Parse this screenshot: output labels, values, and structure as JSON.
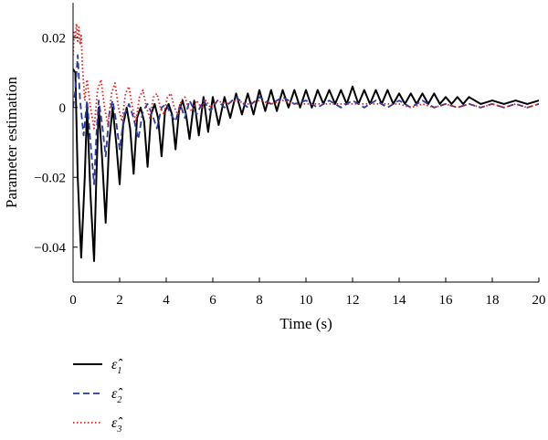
{
  "chart_data": {
    "type": "line",
    "title": "",
    "xlabel": "Time (s)",
    "ylabel": "Parameter estimation",
    "xlim": [
      0,
      20
    ],
    "ylim": [
      -0.05,
      0.03
    ],
    "xticks": [
      0,
      2,
      4,
      6,
      8,
      10,
      12,
      14,
      16,
      18,
      20
    ],
    "xtick_labels": [
      "0",
      "2",
      "4",
      "6",
      "8",
      "10",
      "12",
      "14",
      "16",
      "18",
      "20"
    ],
    "yticks": [
      -0.04,
      -0.02,
      0,
      0.02
    ],
    "ytick_labels": [
      "−0.04",
      "−0.02",
      "0",
      "0.02"
    ],
    "grid": false,
    "legend_position": "below-left",
    "series": [
      {
        "name": "ε̂",
        "subscript": "1",
        "color": "#000000",
        "dash": "solid",
        "x": [
          0,
          0.1,
          0.2,
          0.35,
          0.5,
          0.6,
          0.75,
          0.9,
          1.0,
          1.1,
          1.25,
          1.4,
          1.55,
          1.7,
          1.85,
          2.0,
          2.15,
          2.3,
          2.45,
          2.6,
          2.75,
          2.9,
          3.05,
          3.2,
          3.35,
          3.5,
          3.65,
          3.8,
          3.95,
          4.1,
          4.25,
          4.4,
          4.55,
          4.7,
          4.85,
          5.0,
          5.2,
          5.4,
          5.6,
          5.8,
          6.0,
          6.25,
          6.5,
          6.75,
          7.0,
          7.25,
          7.5,
          7.75,
          8.0,
          8.25,
          8.5,
          8.75,
          9.0,
          9.25,
          9.5,
          9.75,
          10.0,
          10.25,
          10.5,
          10.75,
          11.0,
          11.25,
          11.5,
          11.75,
          12.0,
          12.25,
          12.5,
          12.75,
          13.0,
          13.25,
          13.5,
          13.75,
          14.0,
          14.25,
          14.5,
          14.75,
          15.0,
          15.25,
          15.5,
          15.75,
          16.0,
          16.25,
          16.5,
          16.75,
          17.0,
          17.5,
          18.0,
          18.5,
          19.0,
          19.5,
          20.0
        ],
        "y": [
          0.011,
          0.01,
          -0.02,
          -0.043,
          -0.02,
          0.0,
          -0.025,
          -0.044,
          -0.02,
          0.0,
          -0.015,
          -0.033,
          -0.01,
          0.0,
          -0.01,
          -0.022,
          -0.005,
          0.0,
          -0.006,
          -0.019,
          -0.003,
          0.0,
          -0.004,
          -0.017,
          -0.002,
          0.001,
          -0.003,
          -0.014,
          -0.001,
          0.001,
          -0.002,
          -0.012,
          -0.001,
          0.002,
          -0.002,
          -0.009,
          0.002,
          -0.008,
          0.003,
          -0.007,
          0.003,
          -0.005,
          0.003,
          -0.003,
          0.004,
          -0.002,
          0.004,
          -0.002,
          0.005,
          -0.001,
          0.005,
          -0.001,
          0.005,
          0.0,
          0.005,
          0.0,
          0.005,
          0.0,
          0.005,
          0.001,
          0.005,
          0.001,
          0.005,
          0.001,
          0.006,
          0.001,
          0.005,
          0.001,
          0.005,
          0.001,
          0.005,
          0.001,
          0.004,
          0.001,
          0.004,
          0.001,
          0.004,
          0.001,
          0.004,
          0.001,
          0.003,
          0.001,
          0.003,
          0.001,
          0.003,
          0.001,
          0.002,
          0.001,
          0.002,
          0.001,
          0.002
        ]
      },
      {
        "name": "ε̂",
        "subscript": "2",
        "color": "#2b3aa0",
        "dash": "dashed",
        "x": [
          0,
          0.1,
          0.2,
          0.3,
          0.45,
          0.6,
          0.75,
          0.9,
          1.0,
          1.1,
          1.25,
          1.4,
          1.55,
          1.7,
          1.85,
          2.0,
          2.2,
          2.4,
          2.6,
          2.8,
          3.0,
          3.2,
          3.4,
          3.6,
          3.8,
          4.0,
          4.2,
          4.4,
          4.6,
          4.8,
          5.0,
          5.3,
          5.6,
          5.9,
          6.2,
          6.5,
          7.0,
          7.5,
          8.0,
          8.5,
          9.0,
          9.5,
          10.0,
          10.5,
          11.0,
          11.5,
          12.0,
          12.5,
          13.0,
          13.5,
          14.0,
          14.5,
          15.0,
          15.5,
          16.0,
          16.5,
          17.0,
          17.5,
          18.0,
          18.5,
          19.0,
          19.5,
          20.0
        ],
        "y": [
          0.0,
          0.005,
          0.015,
          0.002,
          -0.008,
          0.002,
          -0.01,
          -0.022,
          -0.008,
          0.002,
          -0.005,
          -0.014,
          -0.002,
          0.002,
          -0.004,
          -0.012,
          -0.002,
          0.001,
          -0.003,
          -0.009,
          -0.001,
          0.001,
          -0.002,
          -0.006,
          0.0,
          0.001,
          -0.002,
          -0.004,
          0.001,
          -0.003,
          0.002,
          -0.002,
          0.002,
          -0.001,
          0.002,
          0.0,
          0.003,
          0.0,
          0.003,
          0.001,
          0.003,
          0.001,
          0.002,
          0.0,
          0.002,
          0.0,
          0.002,
          0.0,
          0.002,
          0.0,
          0.002,
          0.0,
          0.002,
          0.0,
          0.001,
          0.0,
          0.001,
          0.0,
          0.001,
          0.0,
          0.001,
          0.0,
          0.001
        ]
      },
      {
        "name": "ε̂",
        "subscript": "3",
        "color": "#e02020",
        "dash": "dotted",
        "x": [
          0,
          0.05,
          0.1,
          0.15,
          0.2,
          0.25,
          0.3,
          0.35,
          0.4,
          0.5,
          0.6,
          0.75,
          0.9,
          1.05,
          1.2,
          1.35,
          1.5,
          1.65,
          1.8,
          1.95,
          2.1,
          2.25,
          2.4,
          2.55,
          2.7,
          2.85,
          3.0,
          3.15,
          3.3,
          3.45,
          3.6,
          3.75,
          3.9,
          4.05,
          4.2,
          4.35,
          4.5,
          4.65,
          4.8,
          4.95,
          5.1,
          5.3,
          5.5,
          5.7,
          5.9,
          6.2,
          6.5,
          7.0,
          7.5,
          8.0,
          8.5,
          9.0,
          9.5,
          10.0,
          10.5,
          11.0,
          11.5,
          12.0,
          12.5,
          13.0,
          13.5,
          14.0,
          14.5,
          15.0,
          15.5,
          16.0,
          16.5,
          17.0,
          17.5,
          18.0,
          18.5,
          19.0,
          19.5,
          20.0
        ],
        "y": [
          0.015,
          0.022,
          0.02,
          0.024,
          0.019,
          0.023,
          0.018,
          0.021,
          0.012,
          0.002,
          0.008,
          0.0,
          -0.006,
          0.005,
          0.008,
          0.0,
          -0.005,
          0.004,
          0.007,
          0.0,
          -0.004,
          0.004,
          0.006,
          0.0,
          -0.004,
          0.003,
          0.005,
          0.0,
          -0.003,
          0.003,
          0.004,
          0.0,
          -0.002,
          0.003,
          0.004,
          0.0,
          -0.002,
          0.002,
          0.003,
          0.0,
          -0.001,
          0.002,
          0.0,
          0.002,
          0.0,
          0.002,
          0.001,
          0.002,
          0.001,
          0.002,
          0.001,
          0.002,
          0.001,
          0.001,
          0.001,
          0.001,
          0.001,
          0.001,
          0.001,
          0.001,
          0.001,
          0.001,
          0.0,
          0.001,
          0.0,
          0.001,
          0.0,
          0.001,
          0.0,
          0.001,
          0.0,
          0.001,
          0.0,
          0.001
        ]
      }
    ]
  }
}
